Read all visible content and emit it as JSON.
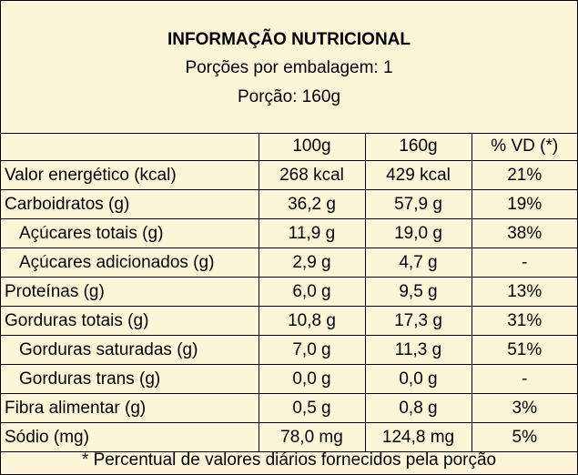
{
  "header": {
    "title": "INFORMAÇÃO NUTRICIONAL",
    "servings_per_package": "Porções por embalagem: 1",
    "serving_size": "Porção: 160g"
  },
  "columns": [
    "",
    "100g",
    "160g",
    "% VD (*)"
  ],
  "rows": [
    {
      "label": "Valor energético (kcal)",
      "v100": "268 kcal",
      "v160": "429 kcal",
      "vd": "21%"
    },
    {
      "label": "Carboidratos (g)",
      "v100": "36,2 g",
      "v160": "57,9 g",
      "vd": "19%"
    },
    {
      "label": "Açúcares totais (g)",
      "v100": "11,9 g",
      "v160": "19,0 g",
      "vd": "38%"
    },
    {
      "label": "Açúcares adicionados (g)",
      "v100": "2,9 g",
      "v160": "4,7 g",
      "vd": "-"
    },
    {
      "label": "Proteínas (g)",
      "v100": "6,0 g",
      "v160": "9,5 g",
      "vd": "13%"
    },
    {
      "label": "Gorduras totais (g)",
      "v100": "10,8 g",
      "v160": "17,3 g",
      "vd": "31%"
    },
    {
      "label": "Gorduras saturadas (g)",
      "v100": "7,0 g",
      "v160": "11,3 g",
      "vd": "51%"
    },
    {
      "label": "Gorduras trans (g)",
      "v100": "0,0 g",
      "v160": "0,0 g",
      "vd": "-"
    },
    {
      "label": "Fibra alimentar (g)",
      "v100": "0,5 g",
      "v160": "0,8 g",
      "vd": "3%"
    },
    {
      "label": "Sódio (mg)",
      "v100": "78,0 mg",
      "v160": "124,8 mg",
      "vd": "5%"
    }
  ],
  "footer": "* Percentual de valores diários fornecidos pela porção",
  "colors": {
    "background": "#fdf5d8",
    "border": "#000000"
  }
}
